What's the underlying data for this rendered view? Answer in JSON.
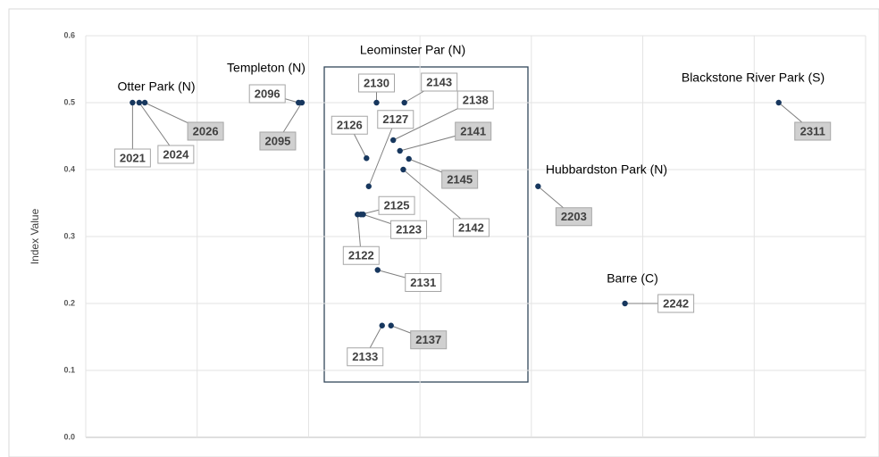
{
  "chart_data": {
    "type": "scatter",
    "y_label": "Index Value",
    "annotations": [
      "Otter Park (N)",
      "Templeton (N)",
      "Leominster Par (N)",
      "Blackstone River Park (S)",
      "Hubbardston Park (N)",
      "Barre (C)"
    ],
    "series": [
      {
        "color": "#17375e",
        "labels": [
          "2021",
          "2024",
          "2026",
          "2096",
          "2095",
          "2130",
          "2143",
          "2138",
          "2141",
          "2145",
          "2126",
          "2127",
          "2142",
          "2125",
          "2123",
          "2122",
          "2131",
          "2133",
          "2137",
          "2203",
          "2242",
          "2311"
        ],
        "label_fills": [
          "#ffffff",
          "#ffffff",
          "#d0d0d0",
          "#ffffff",
          "#d0d0d0",
          "#ffffff",
          "#ffffff",
          "#ffffff",
          "#d0d0d0",
          "#d0d0d0",
          "#ffffff",
          "#ffffff",
          "#ffffff",
          "#ffffff",
          "#ffffff",
          "#ffffff",
          "#ffffff",
          "#ffffff",
          "#d0d0d0",
          "#d0d0d0",
          "#ffffff",
          "#d0d0d0"
        ],
        "x": [
          0.42,
          0.48,
          0.53,
          1.91,
          1.94,
          2.61,
          2.86,
          2.76,
          2.82,
          2.9,
          2.52,
          2.54,
          2.85,
          2.47,
          2.49,
          2.44,
          2.62,
          2.66,
          2.74,
          4.06,
          4.84,
          6.22
        ],
        "values": [
          0.5,
          0.5,
          0.5,
          0.5,
          0.5,
          0.5,
          0.5,
          0.444,
          0.428,
          0.416,
          0.417,
          0.375,
          0.4,
          0.333,
          0.333,
          0.333,
          0.25,
          0.167,
          0.167,
          0.375,
          0.2,
          0.5
        ]
      }
    ],
    "xlim": [
      0,
      7
    ],
    "xticks": [
      0,
      1,
      2,
      3,
      4,
      5,
      6,
      7
    ],
    "ylim": [
      0,
      0.6
    ],
    "yticks": [
      {
        "value": 0,
        "label": "0.0"
      },
      0.1,
      0.2,
      0.3,
      0.4,
      0.5,
      0.6
    ],
    "grid": true
  }
}
